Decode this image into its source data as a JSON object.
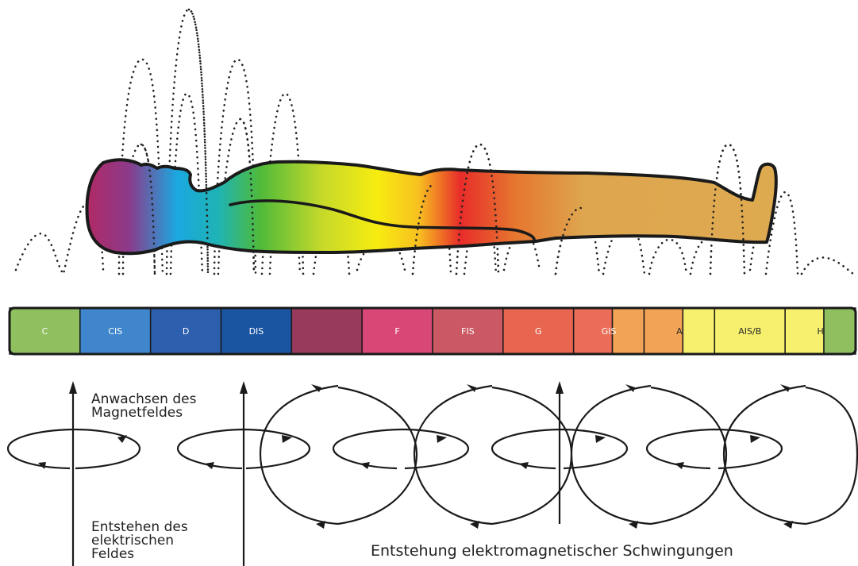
{
  "keys": [
    {
      "label": "C",
      "color": "#8fbf5f",
      "light": false
    },
    {
      "label": "CIS",
      "color": "#3f86cc",
      "light": false
    },
    {
      "label": "D",
      "color": "#2c5fae",
      "light": false
    },
    {
      "label": "DIS",
      "color": "#1a55a2",
      "light": false
    },
    {
      "label": "",
      "color": "#983a5c",
      "light": false
    },
    {
      "label": "F",
      "color": "#d94777",
      "light": false
    },
    {
      "label": "FIS",
      "color": "#cb5964",
      "light": false
    },
    {
      "label": "G",
      "color": "#e86650",
      "light": false
    },
    {
      "label": "GIS",
      "color": "#eb6d57",
      "light": false,
      "split": "#f3a356"
    },
    {
      "label": "A",
      "color": "#f3a356",
      "light": true,
      "split": "#f6f06e"
    },
    {
      "label": "AIS/B",
      "color": "#f6f06e",
      "light": true
    },
    {
      "label": "H",
      "color": "#f6f06e",
      "light": true,
      "split": "#8fbf5f"
    }
  ],
  "labels": {
    "field_growth_1": "Anwachsen des",
    "field_growth_2": "Magnetfeldes",
    "electric_1": "Entstehen des",
    "electric_2": "elektrischen",
    "electric_3": "Feldes",
    "bottom": "Entstehung elektromagnetischer Schwingungen"
  }
}
